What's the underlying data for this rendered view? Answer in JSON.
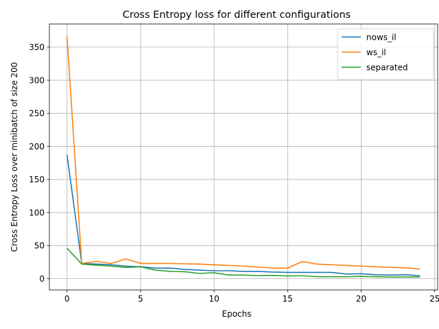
{
  "chart_data": {
    "type": "line",
    "title": "Cross Entropy loss for different configurations",
    "xlabel": "Epochs",
    "ylabel": "Cross Entropy Loss over minibatch of size 200",
    "xlim": [
      -1.2,
      25.2
    ],
    "ylim": [
      -17,
      385
    ],
    "xticks": [
      0,
      5,
      10,
      15,
      20,
      25
    ],
    "yticks": [
      0,
      50,
      100,
      150,
      200,
      250,
      300,
      350
    ],
    "grid": true,
    "legend_position": "top-right",
    "x": [
      0,
      1,
      2,
      3,
      4,
      5,
      6,
      7,
      8,
      9,
      10,
      11,
      12,
      13,
      14,
      15,
      16,
      17,
      18,
      19,
      20,
      21,
      22,
      23,
      24
    ],
    "series": [
      {
        "name": "nows_il",
        "color": "#1f77b4",
        "values": [
          187,
          23,
          22,
          21,
          19,
          18,
          16,
          16,
          14,
          13,
          12,
          12,
          11,
          11,
          10,
          9.5,
          9.5,
          9.5,
          9.5,
          7,
          7.5,
          6,
          5.5,
          6,
          4.5
        ]
      },
      {
        "name": "ws_il",
        "color": "#ff7f0e",
        "values": [
          366,
          23,
          26,
          23,
          30,
          23,
          23,
          23,
          22.5,
          22,
          21,
          20,
          19,
          17.5,
          16,
          16,
          26,
          22,
          21,
          20,
          19,
          18,
          17,
          16.5,
          14.5
        ]
      },
      {
        "name": "separated",
        "color": "#2ca02c",
        "values": [
          46,
          22,
          20.5,
          19,
          17,
          18,
          13,
          11,
          10.5,
          8,
          9,
          5.5,
          5.5,
          4.5,
          5,
          4,
          4.5,
          3,
          3,
          3,
          3.5,
          3,
          2.5,
          2.5,
          2.5
        ]
      }
    ]
  }
}
